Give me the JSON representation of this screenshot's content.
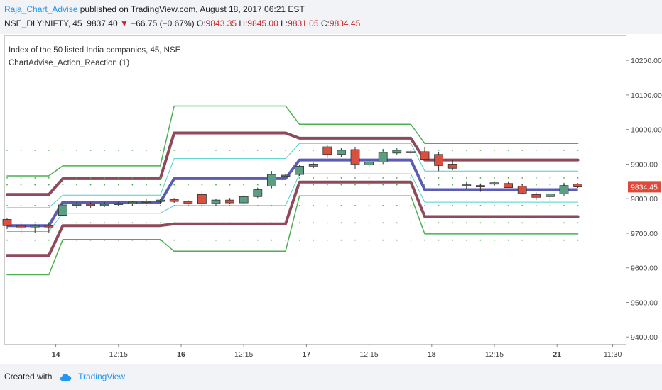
{
  "header": {
    "author": "Raja_Chart_Advise",
    "published_text": "published on TradingView.com, August 18, 2017 06:21 EST",
    "symbol": "NSE_DLY:NIFTY, 45",
    "price": "9837.40",
    "arrow": "▼",
    "change": "−66.75 (−0.67%)",
    "o_label": "O:",
    "o_value": "9843.35",
    "h_label": "H:",
    "h_value": "9845.00",
    "l_label": "L:",
    "l_value": "9831.05",
    "c_label": "C:",
    "c_value": "9834.45"
  },
  "legend": {
    "line1": "Index of the 50 listed India companies, 45, NSE",
    "line2": "ChartAdvise_Action_Reaction (1)"
  },
  "footer": {
    "created_with": "Created with",
    "brand": "TradingView",
    "logo_icon": "cloud-icon"
  },
  "chart_data": {
    "type": "candlestick",
    "ylim": [
      9380,
      10270
    ],
    "y_ticks": [
      "9400.00",
      "9500.00",
      "9600.00",
      "9700.00",
      "9800.00",
      "9900.00",
      "10000.00",
      "10100.00",
      "10200.00"
    ],
    "y_tick_values": [
      9400,
      9500,
      9600,
      9700,
      9800,
      9900,
      10000,
      10100,
      10200
    ],
    "x_ticks": [
      {
        "label": "14",
        "bold": true,
        "i": 3.5
      },
      {
        "label": "12:15",
        "bold": false,
        "i": 8.0
      },
      {
        "label": "16",
        "bold": true,
        "i": 12.5
      },
      {
        "label": "12:15",
        "bold": false,
        "i": 17.0
      },
      {
        "label": "17",
        "bold": true,
        "i": 21.5
      },
      {
        "label": "12:15",
        "bold": false,
        "i": 26.0
      },
      {
        "label": "18",
        "bold": true,
        "i": 30.5
      },
      {
        "label": "12:15",
        "bold": false,
        "i": 35.0
      },
      {
        "label": "21",
        "bold": true,
        "i": 39.5
      },
      {
        "label": "11:30",
        "bold": false,
        "i": 43.5
      }
    ],
    "last_price_label": "9834.45",
    "candles": [
      [
        9740,
        9745,
        9712,
        9722
      ],
      [
        9722,
        9730,
        9698,
        9718
      ],
      [
        9718,
        9726,
        9700,
        9722
      ],
      [
        9722,
        9728,
        9700,
        9718
      ],
      [
        9752,
        9790,
        9748,
        9782
      ],
      [
        9782,
        9790,
        9772,
        9784
      ],
      [
        9784,
        9790,
        9774,
        9780
      ],
      [
        9780,
        9790,
        9776,
        9784
      ],
      [
        9784,
        9792,
        9778,
        9786
      ],
      [
        9786,
        9794,
        9780,
        9790
      ],
      [
        9790,
        9798,
        9784,
        9792
      ],
      [
        9792,
        9800,
        9786,
        9796
      ],
      [
        9798,
        9802,
        9788,
        9792
      ],
      [
        9792,
        9796,
        9780,
        9786
      ],
      [
        9812,
        9820,
        9772,
        9786
      ],
      [
        9786,
        9800,
        9780,
        9796
      ],
      [
        9796,
        9802,
        9784,
        9788
      ],
      [
        9788,
        9810,
        9786,
        9806
      ],
      [
        9806,
        9832,
        9802,
        9826
      ],
      [
        9836,
        9880,
        9830,
        9870
      ],
      [
        9866,
        9872,
        9862,
        9868
      ],
      [
        9870,
        9898,
        9866,
        9894
      ],
      [
        9894,
        9904,
        9888,
        9900
      ],
      [
        9950,
        9956,
        9918,
        9928
      ],
      [
        9928,
        9946,
        9920,
        9940
      ],
      [
        9942,
        9948,
        9886,
        9900
      ],
      [
        9898,
        9912,
        9888,
        9906
      ],
      [
        9906,
        9944,
        9900,
        9934
      ],
      [
        9932,
        9946,
        9928,
        9940
      ],
      [
        9934,
        9940,
        9928,
        9936
      ],
      [
        9936,
        9948,
        9914,
        9914
      ],
      [
        9928,
        9934,
        9880,
        9896
      ],
      [
        9900,
        9912,
        9882,
        9888
      ],
      [
        9840,
        9850,
        9828,
        9838
      ],
      [
        9838,
        9844,
        9820,
        9834
      ],
      [
        9842,
        9850,
        9836,
        9846
      ],
      [
        9844,
        9850,
        9832,
        9832
      ],
      [
        9836,
        9842,
        9814,
        9816
      ],
      [
        9812,
        9818,
        9796,
        9804
      ],
      [
        9806,
        9812,
        9792,
        9814
      ],
      [
        9814,
        9846,
        9808,
        9838
      ],
      [
        9842,
        9845,
        9831,
        9834
      ]
    ],
    "bands": [
      {
        "name": "outer",
        "color": "#4caf50",
        "width": 1.5,
        "upper": [
          [
            0,
            9866
          ],
          [
            3,
            9866
          ],
          [
            4,
            9895
          ],
          [
            11,
            9895
          ],
          [
            12,
            10068
          ],
          [
            20,
            10068
          ],
          [
            21,
            10015
          ],
          [
            29,
            10015
          ],
          [
            30,
            9960
          ],
          [
            41,
            9960
          ]
        ],
        "lower": [
          [
            0,
            9580
          ],
          [
            3,
            9580
          ],
          [
            4,
            9682
          ],
          [
            11,
            9682
          ],
          [
            12,
            9648
          ],
          [
            20,
            9648
          ],
          [
            21,
            9808
          ],
          [
            29,
            9808
          ],
          [
            30,
            9698
          ],
          [
            41,
            9698
          ]
        ]
      },
      {
        "name": "mid",
        "color": "#8e4a5a",
        "width": 4,
        "upper": [
          [
            0,
            9812
          ],
          [
            3,
            9812
          ],
          [
            4,
            9858
          ],
          [
            11,
            9858
          ],
          [
            12,
            9990
          ],
          [
            20,
            9990
          ],
          [
            21,
            9975
          ],
          [
            29,
            9975
          ],
          [
            30,
            9912
          ],
          [
            41,
            9912
          ]
        ],
        "lower": [
          [
            0,
            9636
          ],
          [
            3,
            9636
          ],
          [
            4,
            9722
          ],
          [
            11,
            9722
          ],
          [
            12,
            9727
          ],
          [
            20,
            9727
          ],
          [
            21,
            9848
          ],
          [
            29,
            9848
          ],
          [
            30,
            9748
          ],
          [
            41,
            9748
          ]
        ]
      },
      {
        "name": "inner",
        "color": "#4dd0c8",
        "width": 1,
        "upper": [
          [
            0,
            9774
          ],
          [
            3,
            9774
          ],
          [
            4,
            9810
          ],
          [
            11,
            9810
          ],
          [
            12,
            9916
          ],
          [
            20,
            9916
          ],
          [
            21,
            9960
          ],
          [
            29,
            9960
          ],
          [
            30,
            9880
          ],
          [
            41,
            9880
          ]
        ],
        "lower": [
          [
            0,
            9705
          ],
          [
            3,
            9705
          ],
          [
            4,
            9758
          ],
          [
            11,
            9758
          ],
          [
            12,
            9780
          ],
          [
            20,
            9780
          ],
          [
            21,
            9872
          ],
          [
            29,
            9872
          ],
          [
            30,
            9790
          ],
          [
            41,
            9790
          ]
        ]
      }
    ],
    "pivot": {
      "color": "#5c5cb8",
      "width": 4,
      "points": [
        [
          0,
          9722
        ],
        [
          3,
          9722
        ],
        [
          4,
          9790
        ],
        [
          11,
          9790
        ],
        [
          12,
          9858
        ],
        [
          20,
          9858
        ],
        [
          21,
          9912
        ],
        [
          29,
          9912
        ],
        [
          30,
          9826
        ],
        [
          41,
          9826
        ]
      ]
    },
    "dot_rows": [
      9860,
      9780,
      9730,
      9680,
      9940,
      9840
    ]
  }
}
